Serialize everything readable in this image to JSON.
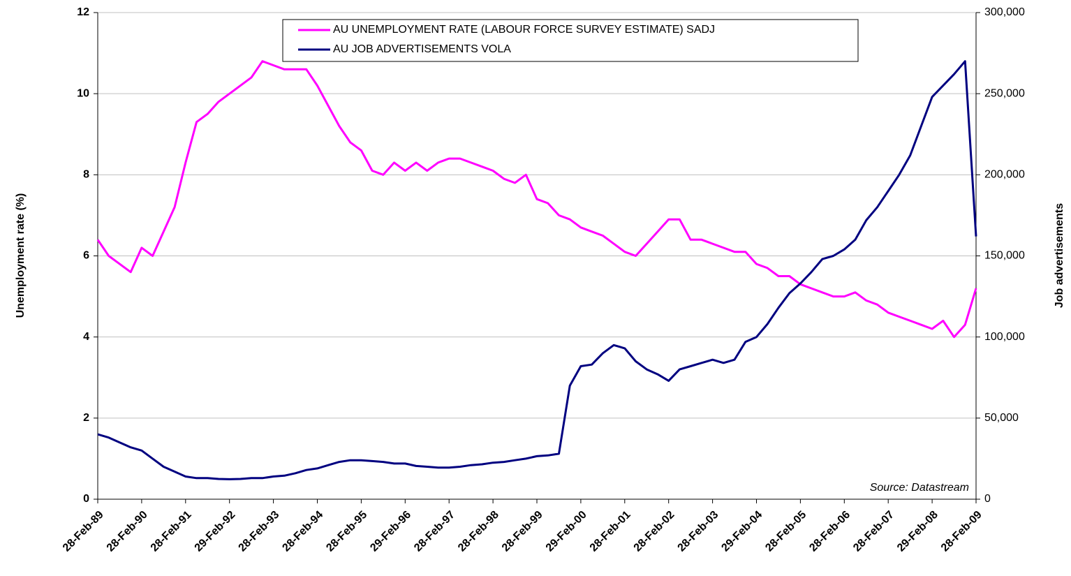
{
  "chart_data": {
    "type": "line",
    "ylabel": "Unemployment rate (%)",
    "y2label": "Job advertisements",
    "annotation": "Source: Datastream",
    "categories": [
      "28-Feb-89",
      null,
      null,
      null,
      "28-Feb-90",
      null,
      null,
      null,
      "28-Feb-91",
      null,
      null,
      null,
      "29-Feb-92",
      null,
      null,
      null,
      "28-Feb-93",
      null,
      null,
      null,
      "28-Feb-94",
      null,
      null,
      null,
      "28-Feb-95",
      null,
      null,
      null,
      "29-Feb-96",
      null,
      null,
      null,
      "28-Feb-97",
      null,
      null,
      null,
      "28-Feb-98",
      null,
      null,
      null,
      "28-Feb-99",
      null,
      null,
      null,
      "29-Feb-00",
      null,
      null,
      null,
      "28-Feb-01",
      null,
      null,
      null,
      "28-Feb-02",
      null,
      null,
      null,
      "28-Feb-03",
      null,
      null,
      null,
      "29-Feb-04",
      null,
      null,
      null,
      "28-Feb-05",
      null,
      null,
      null,
      "28-Feb-06",
      null,
      null,
      null,
      "28-Feb-07",
      null,
      null,
      null,
      "29-Feb-08",
      null,
      null,
      null,
      "28-Feb-09"
    ],
    "series": [
      {
        "name": "AU UNEMPLOYMENT RATE (LABOUR FORCE SURVEY ESTIMATE) SADJ",
        "color": "#ff00ff",
        "axis": "y",
        "values": [
          6.4,
          6.0,
          5.8,
          5.6,
          6.2,
          6.0,
          6.6,
          7.2,
          8.3,
          9.3,
          9.5,
          9.8,
          10.0,
          10.2,
          10.4,
          10.8,
          10.7,
          10.6,
          10.6,
          10.6,
          10.2,
          9.7,
          9.2,
          8.8,
          8.6,
          8.1,
          8.0,
          8.3,
          8.1,
          8.3,
          8.1,
          8.3,
          8.4,
          8.4,
          8.3,
          8.2,
          8.1,
          7.9,
          7.8,
          8.0,
          7.4,
          7.3,
          7.0,
          6.9,
          6.7,
          6.6,
          6.5,
          6.3,
          6.1,
          6.0,
          6.3,
          6.6,
          6.9,
          6.9,
          6.4,
          6.4,
          6.3,
          6.2,
          6.1,
          6.1,
          5.8,
          5.7,
          5.5,
          5.5,
          5.3,
          5.2,
          5.1,
          5.0,
          5.0,
          5.1,
          4.9,
          4.8,
          4.6,
          4.5,
          4.4,
          4.3,
          4.2,
          4.4,
          4.0,
          4.3,
          5.2
        ]
      },
      {
        "name": "AU JOB ADVERTISEMENTS VOLA",
        "color": "#000080",
        "axis": "y2",
        "values": [
          40000,
          38000,
          35000,
          32000,
          30000,
          25000,
          20000,
          17000,
          14000,
          13000,
          13000,
          12500,
          12300,
          12500,
          13000,
          13000,
          14000,
          14500,
          16000,
          18000,
          19000,
          21000,
          23000,
          24000,
          24000,
          23500,
          23000,
          22000,
          22000,
          20500,
          20000,
          19500,
          19500,
          20000,
          21000,
          21500,
          22500,
          23000,
          24000,
          25000,
          26500,
          27000,
          28000,
          70000,
          82000,
          83000,
          90000,
          95000,
          93000,
          85000,
          80000,
          77000,
          73000,
          80000,
          82000,
          84000,
          86000,
          84000,
          86000,
          97000,
          100000,
          108000,
          118000,
          127000,
          133000,
          140000,
          148000,
          150000,
          154000,
          160000,
          172000,
          180000,
          190000,
          200000,
          212000,
          230000,
          248000,
          255000,
          262000,
          270000,
          162000
        ]
      }
    ],
    "ylim": [
      0,
      12
    ],
    "yticks": [
      0,
      2,
      4,
      6,
      8,
      10,
      12
    ],
    "y2lim": [
      0,
      300000
    ],
    "y2ticks": [
      0,
      {
        "value": 50000,
        "label": "50,000"
      },
      {
        "value": 100000,
        "label": "100,000"
      },
      {
        "value": 150000,
        "label": "150,000"
      },
      {
        "value": 200000,
        "label": "200,000"
      },
      {
        "value": 250000,
        "label": "250,000"
      },
      {
        "value": 300000,
        "label": "300,000"
      }
    ],
    "grid": true
  }
}
